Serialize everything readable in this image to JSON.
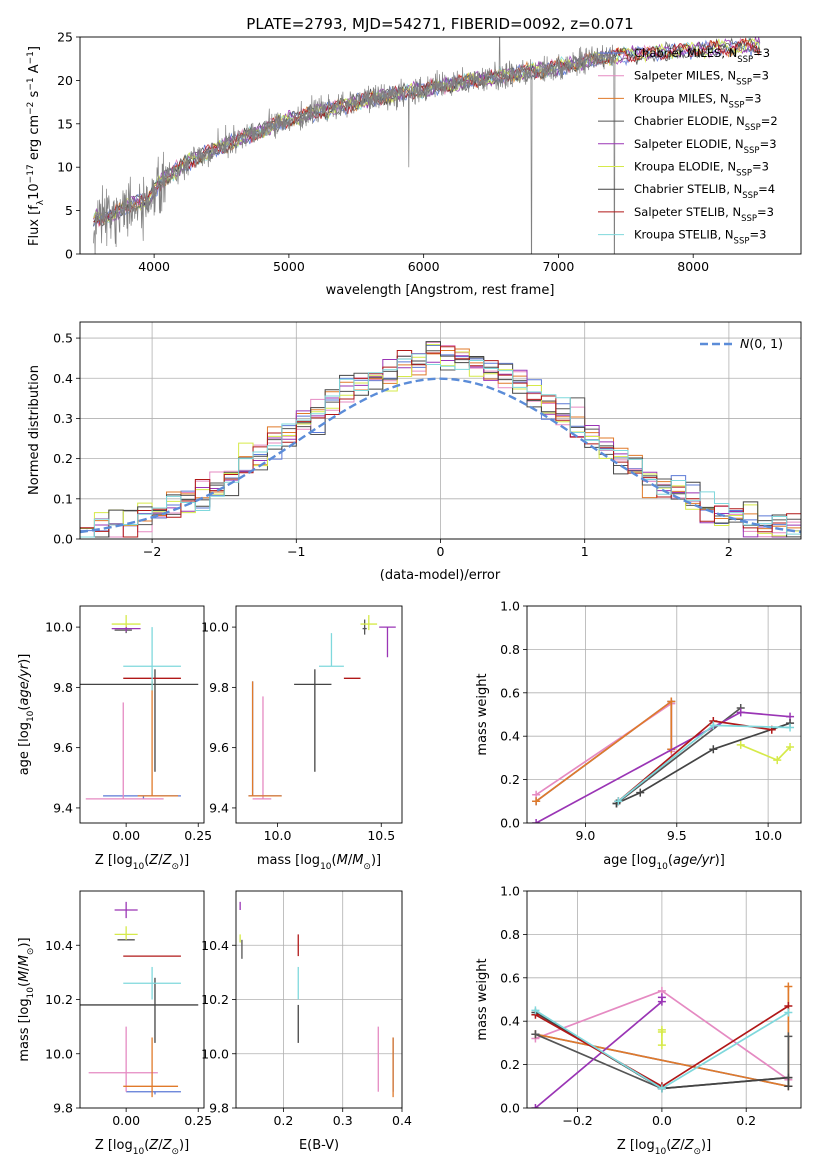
{
  "figure_title": "PLATE=2793, MJD=54271, FIBERID=0092, z=0.071",
  "series_styles": [
    {
      "name": "Chabrier MILES, N",
      "sub": "SSP",
      "suffix": "=3",
      "color": "#5b79d6"
    },
    {
      "name": "Salpeter MILES, N",
      "sub": "SSP",
      "suffix": "=3",
      "color": "#e58ac2"
    },
    {
      "name": "Kroupa MILES, N",
      "sub": "SSP",
      "suffix": "=3",
      "color": "#e07a2a"
    },
    {
      "name": "Chabrier ELODIE, N",
      "sub": "SSP",
      "suffix": "=2",
      "color": "#555555"
    },
    {
      "name": "Salpeter ELODIE, N",
      "sub": "SSP",
      "suffix": "=3",
      "color": "#9a35b5"
    },
    {
      "name": "Kroupa ELODIE, N",
      "sub": "SSP",
      "suffix": "=3",
      "color": "#d6ea4a"
    },
    {
      "name": "Chabrier STELIB, N",
      "sub": "SSP",
      "suffix": "=4",
      "color": "#444444"
    },
    {
      "name": "Salpeter STELIB, N",
      "sub": "SSP",
      "suffix": "=3",
      "color": "#b01818"
    },
    {
      "name": "Kroupa STELIB, N",
      "sub": "SSP",
      "suffix": "=3",
      "color": "#7fd8dc"
    }
  ],
  "chart_data": [
    {
      "id": "spectrum",
      "type": "line",
      "xlabel": "wavelength [Angstrom, rest frame]",
      "ylabel": "Flux [f_λ10^-17 erg cm^-2 s^-1 A^-1]",
      "xlim": [
        3450,
        8800
      ],
      "ylim": [
        0,
        25
      ],
      "xticks": [
        4000,
        5000,
        6000,
        7000,
        8000
      ],
      "yticks": [
        0,
        5,
        10,
        15,
        20,
        25
      ],
      "legend_placement": "right",
      "data_color": "#808080",
      "continuum_anchors": {
        "x": [
          3550,
          3700,
          3850,
          3950,
          4050,
          4300,
          4600,
          5000,
          5500,
          6000,
          6500,
          7000,
          7400,
          8000,
          8500
        ],
        "y": [
          4,
          4.5,
          6,
          6,
          8.5,
          11,
          13,
          15.5,
          17.5,
          19,
          20.3,
          21.5,
          22.8,
          23.5,
          24
        ]
      },
      "data_range": [
        3550,
        7420
      ],
      "model_range": [
        3550,
        8500
      ],
      "spikes": [
        {
          "x": 5890,
          "y": 10
        },
        {
          "x": 6563,
          "y": 25
        },
        {
          "x": 6800,
          "y": 0
        },
        {
          "x": 7415,
          "y": 0
        }
      ]
    },
    {
      "id": "residuals",
      "type": "histogram",
      "xlabel": "(data-model)/error",
      "ylabel": "Normed distribution",
      "xlim": [
        -2.5,
        2.5
      ],
      "ylim": [
        0,
        0.54
      ],
      "xticks": [
        -2,
        -1,
        0,
        1,
        2
      ],
      "yticks": [
        0,
        0.1,
        0.2,
        0.3,
        0.4,
        0.5
      ],
      "grid": true,
      "bin_width": 0.1,
      "reference_curve": {
        "label": "N(0,1)",
        "color": "#5b8cd8",
        "style": "dashed"
      },
      "legend_placement": "top-right"
    },
    {
      "id": "age_vs_Z",
      "type": "errorbar",
      "xlabel": "Z [log10(Z/Z_sun)]",
      "ylabel": "age [log10(age/yr)]",
      "xlim": [
        -0.16,
        0.27
      ],
      "ylim": [
        9.35,
        10.07
      ],
      "xticks": [
        0.0,
        0.25
      ],
      "yticks": [
        9.4,
        9.6,
        9.8,
        10.0
      ],
      "points": [
        {
          "series": 0,
          "x": 0.06,
          "xerr": [
            0.14,
            0.13
          ],
          "y": 9.44,
          "yerr": [
            0.01,
            0.0
          ]
        },
        {
          "series": 1,
          "x": -0.01,
          "xerr": [
            0.13,
            0.14
          ],
          "y": 9.43,
          "yerr": [
            0.0,
            0.32
          ]
        },
        {
          "series": 2,
          "x": 0.09,
          "xerr": [
            0.05,
            0.09
          ],
          "y": 9.44,
          "yerr": [
            0.0,
            0.38
          ]
        },
        {
          "series": 3,
          "x": 0.0,
          "xerr": [
            0.04,
            0.02
          ],
          "y": 9.99,
          "yerr": [
            0.01,
            0.01
          ]
        },
        {
          "series": 4,
          "x": 0.0,
          "xerr": [
            0.05,
            0.05
          ],
          "y": 9.995,
          "yerr": [
            0.01,
            0.01
          ]
        },
        {
          "series": 5,
          "x": 0.0,
          "xerr": [
            0.05,
            0.05
          ],
          "y": 10.01,
          "yerr": [
            0.01,
            0.03
          ]
        },
        {
          "series": 6,
          "x": 0.1,
          "xerr": [
            0.28,
            0.15
          ],
          "y": 9.81,
          "yerr": [
            0.29,
            0.05
          ]
        },
        {
          "series": 7,
          "x": 0.09,
          "xerr": [
            0.1,
            0.1
          ],
          "y": 9.83,
          "yerr": [
            0.0,
            0.0
          ]
        },
        {
          "series": 8,
          "x": 0.09,
          "xerr": [
            0.1,
            0.1
          ],
          "y": 9.87,
          "yerr": [
            0.08,
            0.13
          ]
        }
      ]
    },
    {
      "id": "age_vs_mass",
      "type": "errorbar",
      "xlabel": "mass [log10(M/M_sun)]",
      "ylabel": "",
      "xlim": [
        9.8,
        10.6
      ],
      "ylim": [
        9.35,
        10.07
      ],
      "xticks": [
        10.0,
        10.5
      ],
      "yticks": [
        9.4,
        9.6,
        9.8,
        10.0
      ],
      "points": [
        {
          "series": 0,
          "x": 9.88,
          "xerr": [
            0.02,
            0.14
          ],
          "y": 9.44,
          "yerr": [
            0.0,
            0.38
          ]
        },
        {
          "series": 1,
          "x": 9.93,
          "xerr": [
            0.05,
            0.04
          ],
          "y": 9.43,
          "yerr": [
            0.0,
            0.34
          ]
        },
        {
          "series": 2,
          "x": 9.88,
          "xerr": [
            0.02,
            0.14
          ],
          "y": 9.44,
          "yerr": [
            0.0,
            0.38
          ]
        },
        {
          "series": 3,
          "x": 10.42,
          "xerr": [
            0.01,
            0.01
          ],
          "y": 9.995,
          "yerr": [
            0.02,
            0.03
          ]
        },
        {
          "series": 4,
          "x": 10.53,
          "xerr": [
            0.04,
            0.04
          ],
          "y": 10.0,
          "yerr": [
            0.1,
            0.0
          ]
        },
        {
          "series": 5,
          "x": 10.44,
          "xerr": [
            0.04,
            0.04
          ],
          "y": 10.01,
          "yerr": [
            0.02,
            0.03
          ]
        },
        {
          "series": 6,
          "x": 10.18,
          "xerr": [
            0.1,
            0.08
          ],
          "y": 9.81,
          "yerr": [
            0.29,
            0.05
          ]
        },
        {
          "series": 7,
          "x": 10.36,
          "xerr": [
            0.04,
            0.04
          ],
          "y": 9.83,
          "yerr": [
            0.0,
            0.0
          ]
        },
        {
          "series": 8,
          "x": 10.26,
          "xerr": [
            0.06,
            0.06
          ],
          "y": 9.87,
          "yerr": [
            0.0,
            0.11
          ]
        }
      ]
    },
    {
      "id": "mass_weight_vs_age",
      "type": "line",
      "xlabel": "age [log10(age/yr)]",
      "ylabel": "mass weight",
      "xlim": [
        8.68,
        10.18
      ],
      "ylim": [
        0,
        1
      ],
      "xticks": [
        9.0,
        9.5,
        10.0
      ],
      "yticks": [
        0,
        0.2,
        0.4,
        0.6,
        0.8,
        1.0
      ],
      "grid": true,
      "series": [
        {
          "series": 0,
          "x": [
            8.73,
            9.47,
            9.47
          ],
          "y": [
            0.1,
            0.56,
            0.34
          ]
        },
        {
          "series": 1,
          "x": [
            8.73,
            9.47,
            9.47
          ],
          "y": [
            0.13,
            0.55,
            0.33
          ]
        },
        {
          "series": 2,
          "x": [
            8.73,
            9.47,
            9.47
          ],
          "y": [
            0.1,
            0.56,
            0.34
          ]
        },
        {
          "series": 3,
          "x": [
            9.17,
            9.85
          ],
          "y": [
            0.09,
            0.53
          ]
        },
        {
          "series": 4,
          "x": [
            8.73,
            9.85,
            10.12
          ],
          "y": [
            0.0,
            0.51,
            0.49
          ]
        },
        {
          "series": 5,
          "x": [
            9.85,
            10.05,
            10.12
          ],
          "y": [
            0.36,
            0.29,
            0.35
          ]
        },
        {
          "series": 6,
          "x": [
            9.17,
            9.3,
            9.7,
            10.12
          ],
          "y": [
            0.09,
            0.14,
            0.34,
            0.46
          ]
        },
        {
          "series": 7,
          "x": [
            9.18,
            9.7,
            10.02
          ],
          "y": [
            0.1,
            0.47,
            0.43
          ]
        },
        {
          "series": 8,
          "x": [
            9.18,
            9.7,
            10.12
          ],
          "y": [
            0.1,
            0.45,
            0.44
          ]
        }
      ]
    },
    {
      "id": "mass_vs_Z",
      "type": "errorbar",
      "xlabel": "Z [log10(Z/Z_sun)]",
      "ylabel": "mass [log10(M/M_sun)]",
      "xlim": [
        -0.16,
        0.27
      ],
      "ylim": [
        9.8,
        10.6
      ],
      "xticks": [
        0.0,
        0.25
      ],
      "yticks": [
        9.8,
        10.0,
        10.2,
        10.4
      ],
      "points": [
        {
          "series": 0,
          "x": 0.1,
          "xerr": [
            0.1,
            0.09
          ],
          "y": 9.86,
          "yerr": [
            0.01,
            0.0
          ]
        },
        {
          "series": 1,
          "x": 0.0,
          "xerr": [
            0.13,
            0.11
          ],
          "y": 9.93,
          "yerr": [
            0.07,
            0.17
          ]
        },
        {
          "series": 2,
          "x": 0.09,
          "xerr": [
            0.1,
            0.09
          ],
          "y": 9.88,
          "yerr": [
            0.04,
            0.18
          ]
        },
        {
          "series": 3,
          "x": 0.0,
          "xerr": [
            0.03,
            0.03
          ],
          "y": 10.42,
          "yerr": [
            0.0,
            0.0
          ]
        },
        {
          "series": 4,
          "x": 0.0,
          "xerr": [
            0.04,
            0.04
          ],
          "y": 10.53,
          "yerr": [
            0.03,
            0.03
          ]
        },
        {
          "series": 5,
          "x": 0.0,
          "xerr": [
            0.04,
            0.04
          ],
          "y": 10.44,
          "yerr": [
            0.02,
            0.03
          ]
        },
        {
          "series": 6,
          "x": 0.1,
          "xerr": [
            0.28,
            0.15
          ],
          "y": 10.18,
          "yerr": [
            0.14,
            0.1
          ]
        },
        {
          "series": 7,
          "x": 0.09,
          "xerr": [
            0.1,
            0.1
          ],
          "y": 10.36,
          "yerr": [
            0.0,
            0.0
          ]
        },
        {
          "series": 8,
          "x": 0.09,
          "xerr": [
            0.1,
            0.1
          ],
          "y": 10.26,
          "yerr": [
            0.06,
            0.06
          ]
        }
      ]
    },
    {
      "id": "mass_vs_EBV",
      "type": "errorbar",
      "xlabel": "E(B-V)",
      "ylabel": "",
      "xlim": [
        0.12,
        0.4
      ],
      "ylim": [
        9.8,
        10.6
      ],
      "xticks": [
        0.2,
        0.3,
        0.4
      ],
      "yticks": [
        9.8,
        10.0,
        10.2,
        10.4
      ],
      "grid": true,
      "points": [
        {
          "series": 0,
          "x": 0.385,
          "xerr": [
            0,
            0
          ],
          "y": 9.86,
          "yerr": [
            0.0,
            0.2
          ]
        },
        {
          "series": 1,
          "x": 0.36,
          "xerr": [
            0,
            0
          ],
          "y": 9.93,
          "yerr": [
            0.07,
            0.17
          ]
        },
        {
          "series": 2,
          "x": 0.385,
          "xerr": [
            0,
            0
          ],
          "y": 9.88,
          "yerr": [
            0.04,
            0.18
          ]
        },
        {
          "series": 3,
          "x": 0.13,
          "xerr": [
            0,
            0
          ],
          "y": 10.42,
          "yerr": [
            0.07,
            0.0
          ]
        },
        {
          "series": 4,
          "x": 0.127,
          "xerr": [
            0,
            0
          ],
          "y": 10.53,
          "yerr": [
            0.0,
            0.03
          ]
        },
        {
          "series": 5,
          "x": 0.127,
          "xerr": [
            0,
            0
          ],
          "y": 10.44,
          "yerr": [
            0.03,
            0.0
          ]
        },
        {
          "series": 6,
          "x": 0.225,
          "xerr": [
            0,
            0
          ],
          "y": 10.18,
          "yerr": [
            0.14,
            0.0
          ]
        },
        {
          "series": 7,
          "x": 0.225,
          "xerr": [
            0,
            0
          ],
          "y": 10.36,
          "yerr": [
            0.0,
            0.08
          ]
        },
        {
          "series": 8,
          "x": 0.225,
          "xerr": [
            0,
            0
          ],
          "y": 10.26,
          "yerr": [
            0.06,
            0.06
          ]
        }
      ]
    },
    {
      "id": "mass_weight_vs_Z",
      "type": "line",
      "xlabel": "Z [log10(Z/Z_sun)]",
      "ylabel": "mass weight",
      "xlim": [
        -0.32,
        0.33
      ],
      "ylim": [
        0,
        1
      ],
      "xticks": [
        -0.2,
        0.0,
        0.2
      ],
      "yticks": [
        0,
        0.2,
        0.4,
        0.6,
        0.8,
        1.0
      ],
      "grid": true,
      "series": [
        {
          "series": 0,
          "x": [
            -0.3,
            0.3
          ],
          "y": [
            0.34,
            0.1
          ]
        },
        {
          "series": 1,
          "x": [
            -0.3,
            0.0,
            0.3
          ],
          "y": [
            0.32,
            0.54,
            0.13
          ]
        },
        {
          "series": 2,
          "x": [
            -0.3,
            0.3,
            0.3
          ],
          "y": [
            0.34,
            0.1,
            0.56
          ]
        },
        {
          "series": 3,
          "x": [
            -0.3,
            0.0,
            0.3,
            0.3
          ],
          "y": [
            0.34,
            0.09,
            0.14,
            0.33
          ]
        },
        {
          "series": 4,
          "x": [
            -0.3,
            0.0,
            0.0
          ],
          "y": [
            0.0,
            0.49,
            0.51
          ]
        },
        {
          "series": 5,
          "x": [
            0.0,
            0.0,
            0.0
          ],
          "y": [
            0.36,
            0.29,
            0.35
          ]
        },
        {
          "series": 6,
          "x": [
            -0.3,
            0.0,
            0.3,
            0.3
          ],
          "y": [
            0.44,
            0.09,
            0.14,
            0.1
          ]
        },
        {
          "series": 7,
          "x": [
            -0.3,
            0.0,
            0.3
          ],
          "y": [
            0.43,
            0.1,
            0.47
          ]
        },
        {
          "series": 8,
          "x": [
            -0.3,
            0.0,
            0.3
          ],
          "y": [
            0.45,
            0.09,
            0.44
          ]
        }
      ]
    }
  ]
}
